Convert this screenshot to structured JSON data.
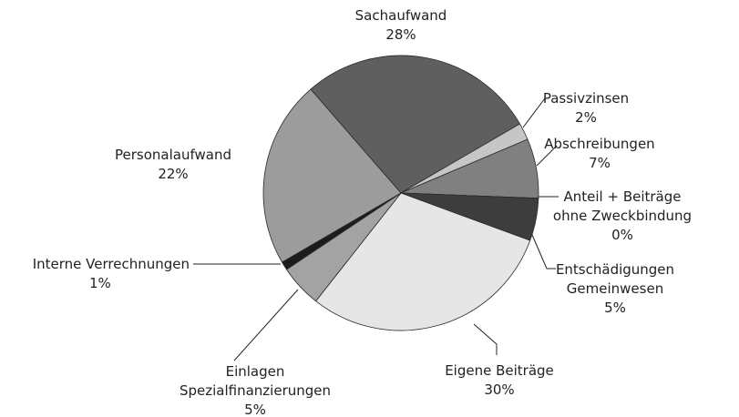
{
  "chart_data": {
    "type": "pie",
    "categories": [
      "Sachaufwand",
      "Passivzinsen",
      "Abschreibungen",
      "Anteil + Beiträge ohne Zweckbindung",
      "Entschädigungen Gemeinwesen",
      "Eigene Beiträge",
      "Einlagen Spezialfinanzierungen",
      "Interne Verrechnungen",
      "Personalaufwand"
    ],
    "values": [
      28,
      2,
      7,
      0,
      5,
      30,
      5,
      1,
      22
    ],
    "value_labels": [
      "28%",
      "2%",
      "7%",
      "0%",
      "5%",
      "30%",
      "5%",
      "1%",
      "22%"
    ],
    "colors": [
      "#5f5f5f",
      "#c6c6c6",
      "#808080",
      "#8a8a8a",
      "#3d3d3d",
      "#e6e6e6",
      "#a3a3a3",
      "#1c1c1c",
      "#9c9c9c"
    ]
  }
}
